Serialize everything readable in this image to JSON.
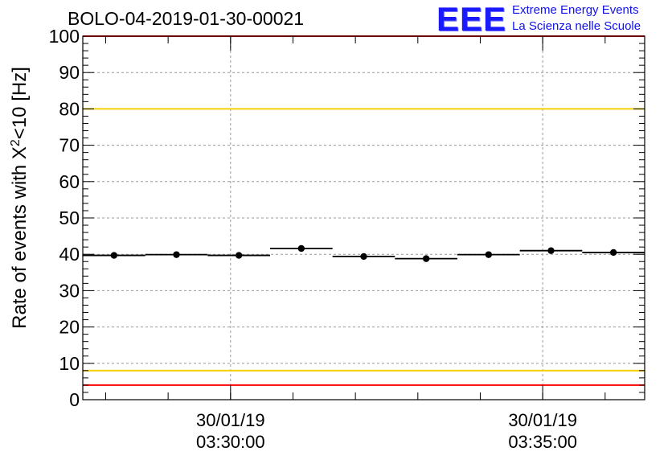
{
  "title": "BOLO-04-2019-01-30-00021",
  "logo": {
    "mark": "EEE",
    "line1": "Extreme Energy Events",
    "line2": "La Scienza nelle Scuole"
  },
  "chart_data": {
    "type": "scatter",
    "title": "BOLO-04-2019-01-30-00021",
    "xlabel": "",
    "ylabel": "Rate of events with X^2<10 [Hz]",
    "ylim": [
      0,
      100
    ],
    "yticks": [
      0,
      10,
      20,
      30,
      40,
      50,
      60,
      70,
      80,
      90,
      100
    ],
    "xlim": [
      "03:27:38",
      "03:36:38"
    ],
    "xticks": [
      {
        "time": "03:30:00",
        "date": "30/01/19",
        "label": "03:30:00"
      },
      {
        "time": "03:35:00",
        "date": "30/01/19",
        "label": "03:35:00"
      }
    ],
    "grid": true,
    "series": [
      {
        "points": [
          {
            "x_start": "03:27:38",
            "x_end": "03:28:38",
            "y": 39.7
          },
          {
            "x_start": "03:28:38",
            "x_end": "03:29:38",
            "y": 39.9
          },
          {
            "x_start": "03:29:38",
            "x_end": "03:30:38",
            "y": 39.7
          },
          {
            "x_start": "03:30:38",
            "x_end": "03:31:38",
            "y": 41.6
          },
          {
            "x_start": "03:31:38",
            "x_end": "03:32:38",
            "y": 39.4
          },
          {
            "x_start": "03:32:38",
            "x_end": "03:33:38",
            "y": 38.8
          },
          {
            "x_start": "03:33:38",
            "x_end": "03:34:38",
            "y": 39.9
          },
          {
            "x_start": "03:34:38",
            "x_end": "03:35:38",
            "y": 41.0
          },
          {
            "x_start": "03:35:38",
            "x_end": "03:36:38",
            "y": 40.5
          }
        ]
      }
    ],
    "reference_lines": [
      {
        "y": 80,
        "color": "#f5d000"
      },
      {
        "y": 8,
        "color": "#f5d000"
      },
      {
        "y": 4,
        "color": "#ff0000"
      },
      {
        "y": 100,
        "color": "#ff0000"
      }
    ]
  }
}
